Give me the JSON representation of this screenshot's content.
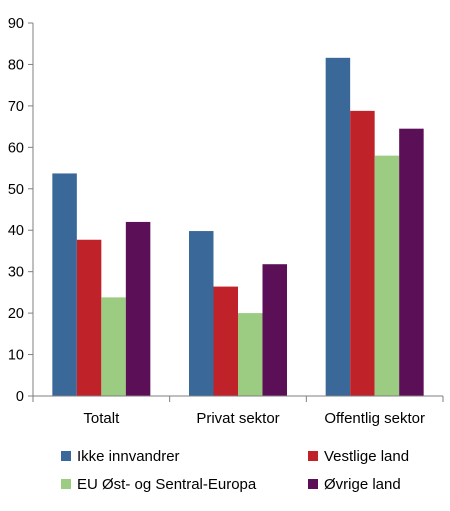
{
  "chart_data": {
    "type": "bar",
    "categories": [
      "Totalt",
      "Privat sektor",
      "Offentlig sektor"
    ],
    "series": [
      {
        "name": "Ikke innvandrer",
        "color": "#3A6899",
        "values": [
          53.7,
          39.8,
          81.6
        ]
      },
      {
        "name": "Vestlige land",
        "color": "#C0222A",
        "values": [
          37.7,
          26.4,
          68.8
        ]
      },
      {
        "name": "EU Øst- og Sentral-Europa",
        "color": "#9CCB82",
        "values": [
          23.8,
          20.0,
          58.0
        ]
      },
      {
        "name": "Øvrige land",
        "color": "#5B0F57",
        "values": [
          42.0,
          31.8,
          64.5
        ]
      }
    ],
    "ylim": [
      0,
      90
    ],
    "yticks": [
      0,
      10,
      20,
      30,
      40,
      50,
      60,
      70,
      80,
      90
    ],
    "title": "",
    "xlabel": "",
    "ylabel": "",
    "grid": false,
    "legend": "bottom"
  }
}
